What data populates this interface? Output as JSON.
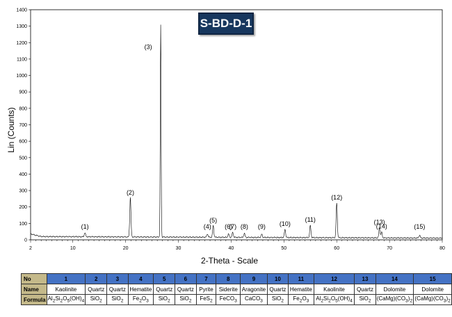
{
  "chart_data": {
    "type": "line",
    "title": "S-BD-D-1",
    "xlabel": "2-Theta - Scale",
    "ylabel": "Lin (Counts)",
    "xlim": [
      2,
      80
    ],
    "ylim": [
      0,
      1400
    ],
    "x_ticks": [
      "2",
      "10",
      "20",
      "30",
      "40",
      "50",
      "60",
      "70",
      "80"
    ],
    "y_ticks": [
      "0",
      "100",
      "200",
      "300",
      "400",
      "500",
      "600",
      "700",
      "800",
      "900",
      "1000",
      "1100",
      "1200",
      "1300",
      "1400"
    ],
    "baseline": 20,
    "peaks": [
      {
        "label": "(1)",
        "x": 12.3,
        "y": 35
      },
      {
        "label": "(2)",
        "x": 20.9,
        "y": 250
      },
      {
        "label": "(3)",
        "x": 26.65,
        "y": 1300
      },
      {
        "label": "(4)",
        "x": 35.5,
        "y": 30
      },
      {
        "label": "(5)",
        "x": 36.6,
        "y": 80
      },
      {
        "label": "(6)",
        "x": 39.5,
        "y": 30
      },
      {
        "label": "(7)",
        "x": 40.3,
        "y": 40
      },
      {
        "label": "(8)",
        "x": 42.5,
        "y": 35
      },
      {
        "label": "(9)",
        "x": 45.8,
        "y": 30
      },
      {
        "label": "(10)",
        "x": 50.2,
        "y": 60
      },
      {
        "label": "(11)",
        "x": 55.0,
        "y": 85
      },
      {
        "label": "(12)",
        "x": 60.0,
        "y": 220
      },
      {
        "label": "(13)",
        "x": 68.1,
        "y": 70
      },
      {
        "label": "(14)",
        "x": 68.5,
        "y": 45
      },
      {
        "label": "(15)",
        "x": 75.7,
        "y": 28
      }
    ]
  },
  "legend_table": {
    "row_labels": [
      "No",
      "Name",
      "Formula"
    ],
    "columns": [
      {
        "no": "1",
        "name": "Kaolinite",
        "formula": "Al2Si2O5(OH)4"
      },
      {
        "no": "2",
        "name": "Quartz",
        "formula": "SiO2"
      },
      {
        "no": "3",
        "name": "Quartz",
        "formula": "SiO2"
      },
      {
        "no": "4",
        "name": "Hematite",
        "formula": "Fe2O3"
      },
      {
        "no": "5",
        "name": "Quartz",
        "formula": "SiO2"
      },
      {
        "no": "6",
        "name": "Quartz",
        "formula": "SiO2"
      },
      {
        "no": "7",
        "name": "Pyrite",
        "formula": "FeS2"
      },
      {
        "no": "8",
        "name": "Siderite",
        "formula": "FeCO3"
      },
      {
        "no": "9",
        "name": "Aragonite",
        "formula": "CaCO3"
      },
      {
        "no": "10",
        "name": "Quartz",
        "formula": "SiO2"
      },
      {
        "no": "11",
        "name": "Hematite",
        "formula": "Fe2O3"
      },
      {
        "no": "12",
        "name": "Kaolinite",
        "formula": "Al2Si2O5(OH)4"
      },
      {
        "no": "13",
        "name": "Quartz",
        "formula": "SiO2"
      },
      {
        "no": "14",
        "name": "Dolomite",
        "formula": "(CaMg)(CO3)2"
      },
      {
        "no": "15",
        "name": "Dolomite",
        "formula": "(CaMg)(CO3)2"
      }
    ]
  },
  "colors": {
    "title_box": "#17375e",
    "table_header": "#4472c4",
    "row_header": "#c4b98a",
    "trace": "#000000"
  }
}
